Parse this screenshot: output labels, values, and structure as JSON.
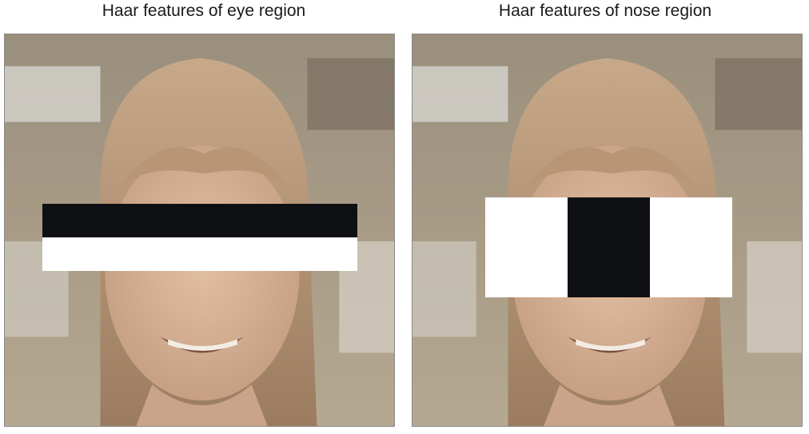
{
  "left_panel": {
    "title": "Haar features of eye region"
  },
  "right_panel": {
    "title": "Haar features of nose region"
  },
  "eye_feature": {
    "orientation": "horizontal two-rectangle",
    "top": "dark",
    "bottom": "light"
  },
  "nose_feature": {
    "orientation": "vertical three-rectangle",
    "cells": [
      "light",
      "dark",
      "light"
    ]
  },
  "colors": {
    "dark_rect": "#0f1013",
    "light_rect": "#ffffff",
    "skin": "#d0ab90",
    "hair": "#b49272",
    "background": "#a59a86",
    "border": "#8a8a8a"
  },
  "icons": [
    "face-photo-icon",
    "face-photo-icon"
  ]
}
